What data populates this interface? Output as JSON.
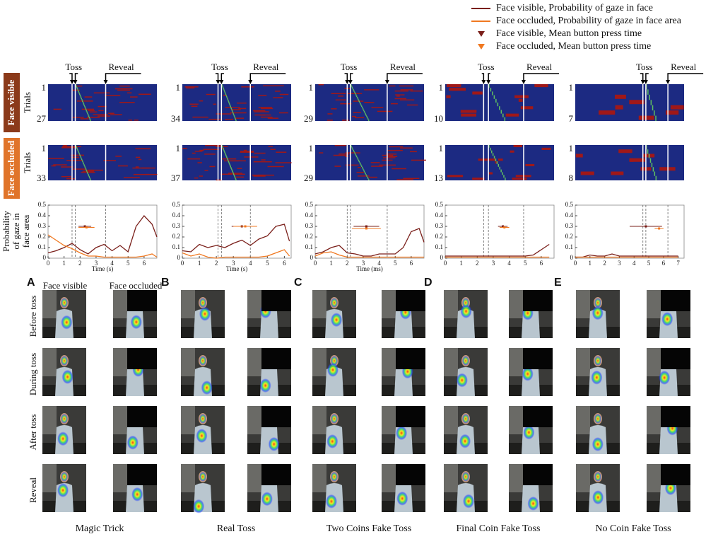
{
  "legend": [
    {
      "label": "Face visible, Probability of gaze in face",
      "color": "#7a1f1a",
      "marker": "line"
    },
    {
      "label": "Face occluded, Probability of gaze in face area",
      "color": "#f07820",
      "marker": "line"
    },
    {
      "label": "Face visible, Mean button press time",
      "color": "#7a1f1a",
      "marker": "triangle"
    },
    {
      "label": "Face occluded, Mean button press time",
      "color": "#f07820",
      "marker": "triangle"
    }
  ],
  "row_labels": {
    "face_visible": "Face visible",
    "face_occluded": "Face occluded",
    "trials": "Trials",
    "y_axis": [
      "Probability",
      "of gaze in",
      "face area"
    ]
  },
  "photo_headers": [
    "Face visible",
    "Face occluded"
  ],
  "photo_rows": [
    "Before toss",
    "During toss",
    "After toss",
    "Reveal"
  ],
  "chart_data": [
    {
      "type": "line",
      "title": "Magic Trick",
      "letter": "A",
      "toss_label": "Toss",
      "reveal_label": "Reveal",
      "visible_trials": [
        1,
        27
      ],
      "occluded_trials": [
        1,
        33
      ],
      "xlabel": "Time (s)",
      "xlim": [
        0,
        6.8
      ],
      "xticks": [
        0,
        1,
        2,
        3,
        4,
        5,
        6
      ],
      "ylim": [
        0,
        0.5
      ],
      "yticks": [
        0,
        0.1,
        0.2,
        0.3,
        0.4,
        0.5
      ],
      "toss_times": [
        1.5,
        1.7
      ],
      "reveal_time": 3.6,
      "x": [
        0,
        0.5,
        1,
        1.5,
        2,
        2.5,
        3,
        3.5,
        4,
        4.5,
        5,
        5.5,
        6,
        6.5,
        6.8
      ],
      "series": [
        {
          "name": "Face visible",
          "color": "#7a1f1a",
          "values": [
            0.05,
            0.07,
            0.1,
            0.14,
            0.08,
            0.04,
            0.1,
            0.13,
            0.07,
            0.12,
            0.06,
            0.3,
            0.4,
            0.32,
            0.2
          ]
        },
        {
          "name": "Face occluded",
          "color": "#f07820",
          "values": [
            0.22,
            0.17,
            0.12,
            0.09,
            0.05,
            0.02,
            0.02,
            0.01,
            0.01,
            0.01,
            0.01,
            0.01,
            0.02,
            0.04,
            0.01
          ]
        }
      ],
      "button_press": [
        {
          "x": 2.3,
          "y": 0.3,
          "xerr": 0.4
        },
        {
          "x": 2.4,
          "y": 0.29,
          "xerr": 0.5
        }
      ]
    },
    {
      "type": "line",
      "title": "Real Toss",
      "letter": "B",
      "toss_label": "Toss",
      "reveal_label": "Reveal",
      "visible_trials": [
        1,
        34
      ],
      "occluded_trials": [
        1,
        37
      ],
      "xlabel": "Time (s)",
      "xlim": [
        0,
        6.4
      ],
      "xticks": [
        0,
        1,
        2,
        3,
        4,
        5,
        6
      ],
      "ylim": [
        0,
        0.5
      ],
      "yticks": [
        0,
        0.1,
        0.2,
        0.3,
        0.4,
        0.5
      ],
      "toss_times": [
        2.1,
        2.3
      ],
      "reveal_time": 4.0,
      "x": [
        0,
        0.5,
        1,
        1.5,
        2,
        2.5,
        3,
        3.5,
        4,
        4.5,
        5,
        5.5,
        6,
        6.3
      ],
      "series": [
        {
          "name": "Face visible",
          "color": "#7a1f1a",
          "values": [
            0.07,
            0.06,
            0.13,
            0.1,
            0.12,
            0.1,
            0.14,
            0.17,
            0.12,
            0.18,
            0.21,
            0.3,
            0.32,
            0.16
          ]
        },
        {
          "name": "Face occluded",
          "color": "#f07820",
          "values": [
            0.05,
            0.02,
            0.04,
            0.01,
            0,
            0.01,
            0.01,
            0.01,
            0.01,
            0.01,
            0.02,
            0.05,
            0.08,
            0.02
          ]
        }
      ],
      "button_press": [
        {
          "x": 3.5,
          "y": 0.3,
          "xerr": 0.6
        },
        {
          "x": 3.7,
          "y": 0.3,
          "xerr": 0.7
        }
      ]
    },
    {
      "type": "line",
      "title": "Two Coins Fake Toss",
      "letter": "C",
      "toss_label": "Toss",
      "reveal_label": "Reveal",
      "visible_trials": [
        1,
        29
      ],
      "occluded_trials": [
        1,
        29
      ],
      "xlabel": "Time (ms)",
      "xlim": [
        0,
        6.8
      ],
      "xticks": [
        0,
        1,
        2,
        3,
        4,
        5,
        6
      ],
      "ylim": [
        0,
        0.5
      ],
      "yticks": [
        0,
        0.1,
        0.2,
        0.3,
        0.4,
        0.5
      ],
      "toss_times": [
        2.0,
        2.2
      ],
      "reveal_time": 4.5,
      "x": [
        0,
        0.5,
        1,
        1.5,
        2,
        2.5,
        3,
        3.5,
        4,
        4.5,
        5,
        5.5,
        6,
        6.5,
        6.8
      ],
      "series": [
        {
          "name": "Face visible",
          "color": "#7a1f1a",
          "values": [
            0.04,
            0.06,
            0.1,
            0.12,
            0.05,
            0.04,
            0.02,
            0.02,
            0.04,
            0.04,
            0.04,
            0.1,
            0.25,
            0.28,
            0.15
          ]
        },
        {
          "name": "Face occluded",
          "color": "#f07820",
          "values": [
            0.02,
            0.05,
            0.06,
            0.03,
            0.01,
            0.01,
            0.01,
            0.01,
            0.01,
            0.01,
            0.01,
            0.01,
            0.01,
            0.01,
            0.01
          ]
        }
      ],
      "button_press": [
        {
          "x": 3.2,
          "y": 0.3,
          "xerr": 0.8
        },
        {
          "x": 3.2,
          "y": 0.28,
          "xerr": 0.9
        }
      ]
    },
    {
      "type": "line",
      "title": "Final Coin Fake Toss",
      "letter": "D",
      "toss_label": "Toss",
      "reveal_label": "Reveal",
      "visible_trials": [
        1,
        10
      ],
      "occluded_trials": [
        1,
        13
      ],
      "xlim": [
        0,
        6.8
      ],
      "xticks": [
        0,
        1,
        2,
        3,
        4,
        5,
        6
      ],
      "ylim": [
        0,
        0.5
      ],
      "yticks": [
        0,
        0.1,
        0.2,
        0.3,
        0.4,
        0.5
      ],
      "toss_times": [
        2.4,
        2.7
      ],
      "reveal_time": 4.9,
      "x": [
        0,
        0.5,
        1,
        1.5,
        2,
        2.5,
        3,
        3.5,
        4,
        4.5,
        5,
        5.5,
        6,
        6.5
      ],
      "series": [
        {
          "name": "Face visible",
          "color": "#7a1f1a",
          "values": [
            0.02,
            0.02,
            0.02,
            0.02,
            0.02,
            0.02,
            0.02,
            0.02,
            0.02,
            0.02,
            0.02,
            0.03,
            0.08,
            0.13
          ]
        },
        {
          "name": "Face occluded",
          "color": "#f07820",
          "values": [
            0.01,
            0.01,
            0.01,
            0.01,
            0.01,
            0.01,
            0.01,
            0.01,
            0.01,
            0.01,
            0.01,
            0.01,
            0.01,
            0.01
          ]
        }
      ],
      "button_press": [
        {
          "x": 3.6,
          "y": 0.3,
          "xerr": 0.3
        },
        {
          "x": 3.7,
          "y": 0.29,
          "xerr": 0.3
        }
      ]
    },
    {
      "type": "line",
      "title": "No Coin Fake Toss",
      "letter": "E",
      "toss_label": "Toss",
      "reveal_label": "Reveal",
      "visible_trials": [
        1,
        7
      ],
      "occluded_trials": [
        1,
        8
      ],
      "xlim": [
        0,
        7.4
      ],
      "xticks": [
        0,
        1,
        2,
        3,
        4,
        5,
        6,
        7
      ],
      "ylim": [
        0,
        0.5
      ],
      "yticks": [
        0,
        0.1,
        0.2,
        0.3,
        0.4,
        0.5
      ],
      "toss_times": [
        4.6,
        4.8
      ],
      "reveal_time": 6.3,
      "x": [
        0,
        0.5,
        1,
        1.5,
        2,
        2.5,
        3,
        3.5,
        4,
        5,
        6,
        7
      ],
      "series": [
        {
          "name": "Face visible",
          "color": "#7a1f1a",
          "values": [
            0.01,
            0.01,
            0.03,
            0.02,
            0.02,
            0.04,
            0.02,
            0.02,
            0.02,
            0.02,
            0.02,
            0.02
          ]
        },
        {
          "name": "Face occluded",
          "color": "#f07820",
          "values": [
            0.01,
            0.01,
            0.01,
            0.01,
            0.01,
            0.01,
            0.01,
            0.01,
            0.01,
            0.01,
            0.01,
            0.01
          ]
        }
      ],
      "button_press": [
        {
          "x": 4.8,
          "y": 0.3,
          "xerr": 1.1
        },
        {
          "x": 5.7,
          "y": 0.28,
          "xerr": 0.3
        }
      ]
    }
  ]
}
